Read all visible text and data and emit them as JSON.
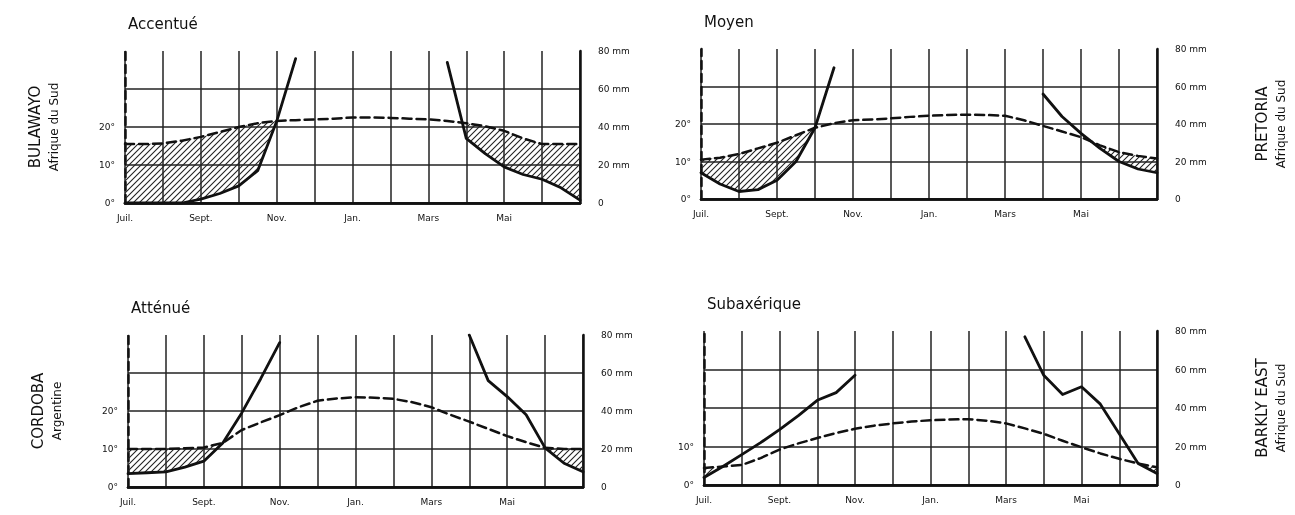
{
  "chart_data": [
    {
      "type": "line",
      "title": "Accentué",
      "ylabel": "BULAWAYO\nAfrique du Sud",
      "marker": "none",
      "grid": true,
      "categories": [
        "Juil.",
        null,
        null,
        null,
        "Sept.",
        null,
        null,
        null,
        "Nov.",
        null,
        null,
        null,
        "Jan.",
        null,
        null,
        null,
        "Mars",
        null,
        null,
        null,
        "Mai",
        null,
        null,
        null,
        null
      ],
      "ylim": [
        0,
        40
      ],
      "yticks": [
        {
          "value": 0,
          "label": "0°"
        },
        {
          "value": 10,
          "label": "10°"
        },
        {
          "value": 20,
          "label": "20°"
        },
        {
          "value": 30,
          "label": null
        }
      ],
      "y2lim": [
        0,
        80
      ],
      "y2ticks": [
        {
          "value": 0,
          "label": "0"
        },
        {
          "value": 20,
          "label": "20 mm"
        },
        {
          "value": 40,
          "label": "40 mm"
        },
        {
          "value": 60,
          "label": "60 mm"
        },
        {
          "value": 80,
          "label": "80 mm"
        }
      ],
      "series": [
        {
          "color": "#111111",
          "line_style": "dashed",
          "values": [
            15.5,
            15.5,
            15.7,
            16.4,
            17.4,
            18.7,
            20,
            21,
            21.6,
            21.8,
            22,
            22.2,
            22.5,
            22.5,
            22.4,
            22.2,
            22,
            21.6,
            21,
            20.2,
            19,
            17,
            15.5,
            15.5,
            15.5
          ],
          "lower": [
            0,
            0,
            0,
            0,
            1,
            2.5,
            4.5,
            8.5,
            21.5,
            null,
            null,
            null,
            null,
            null,
            null,
            null,
            null,
            null,
            17,
            13,
            9.5,
            7.5,
            6.2,
            4,
            0.8
          ],
          "upper": [
            15.5,
            15.5,
            15.7,
            16.4,
            17.4,
            18.7,
            20,
            21,
            21.6,
            null,
            null,
            null,
            null,
            null,
            null,
            null,
            null,
            null,
            21,
            20.2,
            19,
            17,
            15.5,
            15.5,
            15.5
          ]
        },
        {
          "color": "#111111",
          "line_style": "solid",
          "axis": "y2",
          "values": [
            0,
            0,
            0,
            0,
            2,
            5,
            9,
            17,
            43,
            76,
            null,
            null,
            null,
            null,
            null,
            null,
            null,
            null,
            null,
            null,
            null,
            null,
            null,
            null,
            null
          ]
        },
        {
          "color": "#111111",
          "line_style": "solid",
          "axis": "y2",
          "values": [
            null,
            null,
            null,
            null,
            null,
            null,
            null,
            null,
            null,
            null,
            null,
            null,
            null,
            null,
            null,
            null,
            null,
            74,
            34,
            26,
            19,
            15,
            12.5,
            8,
            1.5
          ]
        }
      ]
    },
    {
      "type": "line",
      "title": "Moyen",
      "y2label": "PRETORIA\nAfrique du Sud",
      "marker": "none",
      "grid": true,
      "categories": [
        "Juil.",
        null,
        null,
        null,
        "Sept.",
        null,
        null,
        null,
        "Nov.",
        null,
        null,
        null,
        "Jan.",
        null,
        null,
        null,
        "Mars",
        null,
        null,
        null,
        "Mai",
        null,
        null,
        null,
        null
      ],
      "ylim": [
        0,
        40
      ],
      "yticks": [
        {
          "value": 0,
          "label": "0°"
        },
        {
          "value": 10,
          "label": "10°"
        },
        {
          "value": 20,
          "label": "20°"
        },
        {
          "value": 30,
          "label": null
        }
      ],
      "y2lim": [
        0,
        80
      ],
      "y2ticks": [
        {
          "value": 0,
          "label": "0"
        },
        {
          "value": 20,
          "label": "20 mm"
        },
        {
          "value": 40,
          "label": "40 mm"
        },
        {
          "value": 60,
          "label": "60 mm"
        },
        {
          "value": 80,
          "label": "80 mm"
        }
      ],
      "series": [
        {
          "color": "#111111",
          "line_style": "dashed",
          "values": [
            10.5,
            11,
            12,
            13.5,
            15,
            17,
            19,
            20.2,
            21,
            21.2,
            21.5,
            21.9,
            22.2,
            22.4,
            22.5,
            22.4,
            22.2,
            21,
            19.5,
            18,
            16.5,
            14.3,
            12.5,
            11.5,
            10.8
          ],
          "lower": [
            7,
            4,
            2,
            2.5,
            5,
            10,
            19,
            null,
            null,
            null,
            null,
            null,
            null,
            null,
            null,
            null,
            null,
            null,
            null,
            null,
            null,
            13.5,
            10,
            8,
            7
          ],
          "upper": [
            10.5,
            11,
            12,
            13.5,
            15,
            17,
            19,
            null,
            null,
            null,
            null,
            null,
            null,
            null,
            null,
            null,
            null,
            null,
            null,
            null,
            null,
            14.3,
            12.5,
            11.5,
            10.8
          ]
        },
        {
          "color": "#111111",
          "line_style": "solid",
          "axis": "y2",
          "values": [
            14,
            8,
            4,
            5,
            10,
            20,
            38,
            70,
            null,
            null,
            null,
            null,
            null,
            null,
            null,
            null,
            null,
            null,
            null,
            null,
            null,
            null,
            null,
            null,
            null
          ]
        },
        {
          "color": "#111111",
          "line_style": "solid",
          "axis": "y2",
          "values": [
            null,
            null,
            null,
            null,
            null,
            null,
            null,
            null,
            null,
            null,
            null,
            null,
            null,
            null,
            null,
            null,
            null,
            null,
            56,
            44,
            35,
            27,
            20,
            16,
            14
          ]
        }
      ]
    },
    {
      "type": "line",
      "title": "Atténué",
      "ylabel": "CORDOBA\nArgentine",
      "marker": "none",
      "grid": true,
      "categories": [
        "Juil.",
        null,
        null,
        null,
        "Sept.",
        null,
        null,
        null,
        "Nov.",
        null,
        null,
        null,
        "Jan.",
        null,
        null,
        null,
        "Mars",
        null,
        null,
        null,
        "Mai",
        null,
        null,
        null,
        null
      ],
      "ylim": [
        0,
        40
      ],
      "yticks": [
        {
          "value": 0,
          "label": "0°"
        },
        {
          "value": 10,
          "label": "10°"
        },
        {
          "value": 20,
          "label": "20°"
        },
        {
          "value": 30,
          "label": null
        }
      ],
      "y2lim": [
        0,
        80
      ],
      "y2ticks": [
        {
          "value": 0,
          "label": "0"
        },
        {
          "value": 20,
          "label": "20 mm"
        },
        {
          "value": 40,
          "label": "40 mm"
        },
        {
          "value": 60,
          "label": "60 mm"
        },
        {
          "value": 80,
          "label": "80 mm"
        }
      ],
      "series": [
        {
          "color": "#111111",
          "line_style": "dashed",
          "values": [
            10,
            10,
            10,
            10.2,
            10.4,
            11.6,
            15,
            17,
            18.9,
            21,
            22.7,
            23.3,
            23.6,
            23.5,
            23.2,
            22.3,
            21,
            19,
            17.2,
            15.3,
            13.4,
            11.8,
            10.3,
            10,
            10
          ],
          "lower": [
            3.5,
            3.8,
            4,
            5.2,
            6.8,
            11.6,
            null,
            null,
            null,
            null,
            null,
            null,
            null,
            null,
            null,
            null,
            null,
            null,
            null,
            null,
            null,
            null,
            10.3,
            6.2,
            4
          ],
          "upper": [
            10,
            10,
            10,
            10.2,
            10.4,
            11.6,
            null,
            null,
            null,
            null,
            null,
            null,
            null,
            null,
            null,
            null,
            null,
            null,
            null,
            null,
            null,
            null,
            10.3,
            10,
            10
          ]
        },
        {
          "color": "#111111",
          "line_style": "solid",
          "axis": "y2",
          "values": [
            7,
            7.5,
            8,
            10.5,
            13.6,
            23.2,
            39,
            57,
            76,
            null,
            null,
            null,
            null,
            null,
            null,
            null,
            null,
            null,
            null,
            null,
            null,
            null,
            null,
            null,
            null
          ]
        },
        {
          "color": "#111111",
          "line_style": "solid",
          "axis": "y2",
          "values": [
            null,
            null,
            null,
            null,
            null,
            null,
            null,
            null,
            null,
            null,
            null,
            null,
            null,
            null,
            null,
            null,
            null,
            null,
            80,
            56,
            47.6,
            38,
            20.6,
            12.5,
            8
          ]
        }
      ]
    },
    {
      "type": "line",
      "title": "Subaxérique",
      "y2label": "BARKLY EAST\nAfrique du Sud",
      "marker": "none",
      "grid": true,
      "categories": [
        "Juil.",
        null,
        null,
        null,
        "Sept.",
        null,
        null,
        null,
        "Nov.",
        null,
        null,
        null,
        "Jan.",
        null,
        null,
        null,
        "Mars",
        null,
        null,
        null,
        "Mai",
        null,
        null,
        null,
        null
      ],
      "ylim": [
        0,
        40
      ],
      "yticks": [
        {
          "value": 0,
          "label": "0°"
        },
        {
          "value": 10,
          "label": "10°"
        },
        {
          "value": 20,
          "label": null
        },
        {
          "value": 30,
          "label": null
        }
      ],
      "y2lim": [
        0,
        80
      ],
      "y2ticks": [
        {
          "value": 0,
          "label": "0"
        },
        {
          "value": 20,
          "label": "20 mm"
        },
        {
          "value": 40,
          "label": "40 mm"
        },
        {
          "value": 60,
          "label": "60 mm"
        },
        {
          "value": 80,
          "label": "80 mm"
        }
      ],
      "series": [
        {
          "color": "#111111",
          "line_style": "dashed",
          "values": [
            4.4,
            4.8,
            5.2,
            7,
            9.2,
            10.8,
            12.2,
            13.5,
            14.6,
            15.4,
            16,
            16.5,
            16.8,
            17,
            17.1,
            16.7,
            16,
            14.7,
            13.3,
            11.5,
            9.8,
            8.2,
            6.8,
            5.6,
            4.6
          ],
          "lower": [
            2,
            4.8,
            null,
            null,
            null,
            null,
            null,
            null,
            null,
            null,
            null,
            null,
            null,
            null,
            null,
            null,
            null,
            null,
            null,
            null,
            null,
            null,
            null,
            5.6,
            3
          ],
          "upper": [
            4.4,
            4.8,
            null,
            null,
            null,
            null,
            null,
            null,
            null,
            null,
            null,
            null,
            null,
            null,
            null,
            null,
            null,
            null,
            null,
            null,
            null,
            null,
            null,
            5.6,
            4.6
          ]
        },
        {
          "color": "#111111",
          "line_style": "solid",
          "axis": "y2",
          "values": [
            3.9,
            9.6,
            15.8,
            22,
            28.8,
            36,
            44,
            48,
            57,
            null,
            null,
            null,
            null,
            null,
            null,
            null,
            null,
            null,
            null,
            null,
            null,
            null,
            null,
            null,
            null
          ]
        },
        {
          "color": "#111111",
          "line_style": "solid",
          "axis": "y2",
          "values": [
            null,
            null,
            null,
            null,
            null,
            null,
            null,
            null,
            null,
            null,
            null,
            null,
            null,
            null,
            null,
            null,
            null,
            77,
            57,
            47,
            51,
            42,
            26.6,
            11.2,
            6
          ]
        }
      ]
    }
  ]
}
